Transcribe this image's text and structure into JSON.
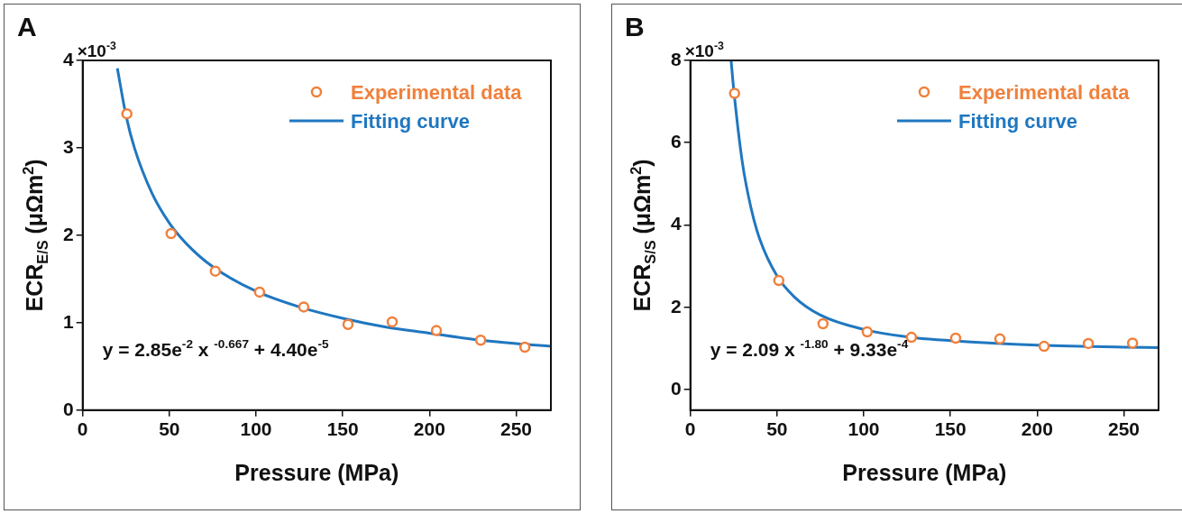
{
  "chart_data": [
    {
      "type": "scatter",
      "title": "A",
      "xlabel": "Pressure (MPa)",
      "ylabel": "ECR$_{E/S}$ (μΩm$^{2}$)",
      "annotations": [
        "×10$^{-3}$",
        "y = 2.85e$^{-2}$ x $^{-0.667}$ + 4.40e$^{-5}$"
      ],
      "xlim": [
        0,
        270
      ],
      "xticks": [
        0,
        50,
        100,
        150,
        200,
        250
      ],
      "ylim": [
        0,
        4
      ],
      "yticks": [
        0,
        1,
        2,
        3,
        4
      ],
      "legend": "top right",
      "series": [
        {
          "name": "Experimental data",
          "type": "scatter",
          "marker": "circle",
          "color": "#f0803c",
          "x": [
            25.5,
            51,
            76.5,
            102,
            127.5,
            153,
            178.5,
            204,
            229.5,
            255
          ],
          "values": [
            3.39,
            2.02,
            1.59,
            1.35,
            1.18,
            0.98,
            1.01,
            0.91,
            0.8,
            0.72
          ]
        },
        {
          "name": "Fitting curve",
          "type": "line",
          "marker": "none",
          "color": "#1f77c0",
          "x": [
            20,
            25,
            30,
            40,
            50,
            60,
            75,
            100,
            125,
            150,
            175,
            200,
            225,
            250,
            270
          ],
          "values": [
            3.91,
            3.37,
            2.99,
            2.48,
            2.14,
            1.9,
            1.64,
            1.36,
            1.18,
            1.05,
            0.95,
            0.88,
            0.81,
            0.76,
            0.73
          ]
        }
      ]
    },
    {
      "type": "scatter",
      "title": "B",
      "xlabel": "Pressure (MPa)",
      "ylabel": "ECR$_{S/S}$ (μΩm$^{2}$)",
      "annotations": [
        "×10$^{-3}$",
        "y = 2.09 x $^{-1.80}$ + 9.33e$^{-4}$"
      ],
      "xlim": [
        0,
        270
      ],
      "xticks": [
        0,
        50,
        100,
        150,
        200,
        250
      ],
      "ylim": [
        -0.5,
        8
      ],
      "yticks": [
        0,
        2,
        4,
        6,
        8
      ],
      "legend": "top right",
      "series": [
        {
          "name": "Experimental data",
          "type": "scatter",
          "marker": "circle",
          "color": "#f0803c",
          "x": [
            25.5,
            51,
            76.5,
            102,
            127.5,
            153,
            178.5,
            204,
            229.5,
            255
          ],
          "values": [
            7.2,
            2.65,
            1.6,
            1.4,
            1.27,
            1.25,
            1.23,
            1.05,
            1.12,
            1.13
          ]
        },
        {
          "name": "Fitting curve",
          "type": "line",
          "marker": "none",
          "color": "#1f77c0",
          "x": [
            23.5,
            25,
            30,
            35,
            40,
            50,
            60,
            75,
            100,
            125,
            150,
            200,
            250,
            270
          ],
          "values": [
            8,
            7.3,
            5.52,
            4.41,
            3.66,
            2.76,
            2.25,
            1.81,
            1.46,
            1.28,
            1.19,
            1.08,
            1.03,
            1.02
          ]
        }
      ]
    }
  ]
}
